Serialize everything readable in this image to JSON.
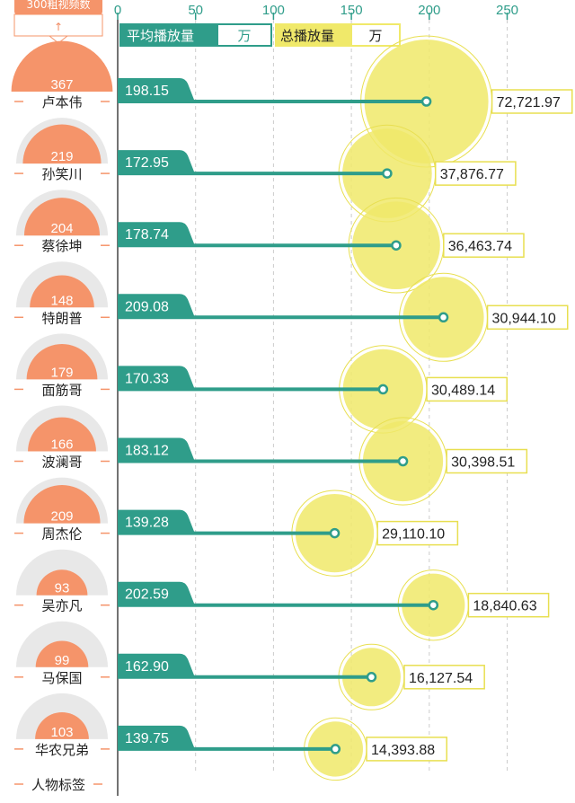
{
  "header": {
    "top_tag_label": "300粗视频数",
    "top_arrow": "↑",
    "bottom_label": "人物标签"
  },
  "legend": {
    "avg_label": "平均播放量",
    "avg_unit": "万",
    "total_label": "总播放量",
    "total_unit": "万"
  },
  "colors": {
    "teal": "#2f9d8a",
    "yellow": "#f0e96a",
    "yellow_stroke": "#e8df50",
    "orange": "#f5946a",
    "gauge_bg": "#e8e8e8"
  },
  "chart_data": {
    "type": "scatter",
    "x_axis": {
      "ticks": [
        0,
        50,
        100,
        150,
        200,
        250
      ],
      "range": [
        0,
        250
      ]
    },
    "gauge_max": 300,
    "persons": [
      {
        "name": "卢本伟",
        "videos": 367,
        "avg": 198.15,
        "avg_label": "198.15",
        "total": 72721.97,
        "total_label": "72,721.97"
      },
      {
        "name": "孙笑川",
        "videos": 219,
        "avg": 172.95,
        "avg_label": "172.95",
        "total": 37876.77,
        "total_label": "37,876.77"
      },
      {
        "name": "蔡徐坤",
        "videos": 204,
        "avg": 178.74,
        "avg_label": "178.74",
        "total": 36463.74,
        "total_label": "36,463.74"
      },
      {
        "name": "特朗普",
        "videos": 148,
        "avg": 209.08,
        "avg_label": "209.08",
        "total": 30944.1,
        "total_label": "30,944.10"
      },
      {
        "name": "面筋哥",
        "videos": 179,
        "avg": 170.33,
        "avg_label": "170.33",
        "total": 30489.14,
        "total_label": "30,489.14"
      },
      {
        "name": "波澜哥",
        "videos": 166,
        "avg": 183.12,
        "avg_label": "183.12",
        "total": 30398.51,
        "total_label": "30,398.51"
      },
      {
        "name": "周杰伦",
        "videos": 209,
        "avg": 139.28,
        "avg_label": "139.28",
        "total": 29110.1,
        "total_label": "29,110.10"
      },
      {
        "name": "吴亦凡",
        "videos": 93,
        "avg": 202.59,
        "avg_label": "202.59",
        "total": 18840.63,
        "total_label": "18,840.63"
      },
      {
        "name": "马保国",
        "videos": 99,
        "avg": 162.9,
        "avg_label": "162.90",
        "total": 16127.54,
        "total_label": "16,127.54"
      },
      {
        "name": "华农兄弟",
        "videos": 103,
        "avg": 139.75,
        "avg_label": "139.75",
        "total": 14393.88,
        "total_label": "14,393.88"
      }
    ]
  }
}
